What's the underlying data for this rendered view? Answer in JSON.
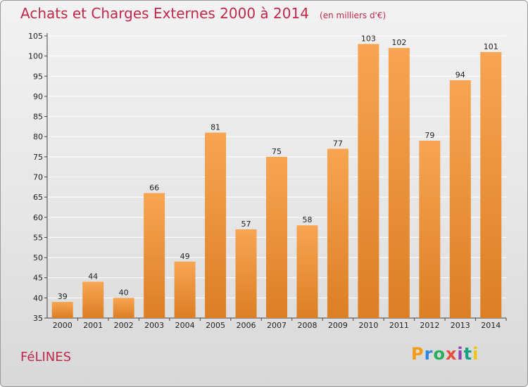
{
  "title": "Achats et Charges Externes 2000 à 2014",
  "unit": "(en milliers d'€)",
  "commune": "FéLINES",
  "logo": {
    "text": "Proxiti",
    "colors": [
      "#f39c12",
      "#2e86de",
      "#27ae60",
      "#e74c3c",
      "#8e44ad",
      "#16a085",
      "#f1c40f"
    ]
  },
  "colors": {
    "bar_top": "#f7a552",
    "bar_bottom": "#dc7e24",
    "title": "#c0284a",
    "grid": "#ffffff"
  },
  "chart_data": {
    "type": "bar",
    "categories": [
      "2000",
      "2001",
      "2002",
      "2003",
      "2004",
      "2005",
      "2006",
      "2007",
      "2008",
      "2009",
      "2010",
      "2011",
      "2012",
      "2013",
      "2014"
    ],
    "values": [
      39,
      44,
      40,
      66,
      49,
      81,
      57,
      75,
      58,
      77,
      103,
      102,
      79,
      94,
      101
    ],
    "ylim": [
      35,
      105
    ],
    "yticks": [
      35,
      40,
      45,
      50,
      55,
      60,
      65,
      70,
      75,
      80,
      85,
      90,
      95,
      100,
      105
    ],
    "grid": true,
    "xlabel": "",
    "ylabel": ""
  }
}
